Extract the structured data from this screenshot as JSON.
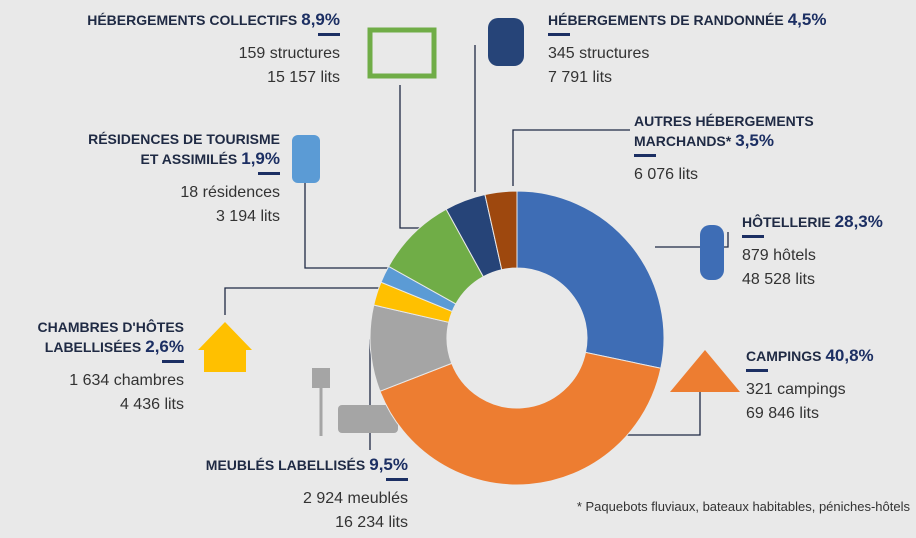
{
  "chart_data": {
    "type": "donut",
    "categories": [
      "HÔTELLERIE",
      "CAMPINGS",
      "MEUBLÉS LABELLISÉS",
      "CHAMBRES D'HÔTES LABELLISÉES",
      "RÉSIDENCES DE TOURISME ET ASSIMILÉS",
      "HÉBERGEMENTS COLLECTIFS",
      "HÉBERGEMENTS DE RANDONNÉE",
      "AUTRES HÉBERGEMENTS MARCHANDS*"
    ],
    "values": [
      28.3,
      40.8,
      9.5,
      2.6,
      1.9,
      8.9,
      4.5,
      3.5
    ],
    "value_labels": [
      "28,3%",
      "40,8%",
      "9,5%",
      "2,6%",
      "1,9%",
      "8,9%",
      "4,5%",
      "3,5%"
    ],
    "colors": [
      "#3e6db5",
      "#ed7d31",
      "#a5a5a5",
      "#ffc000",
      "#5b9bd5",
      "#70ad47",
      "#264478",
      "#9e480e"
    ],
    "details": [
      [
        "879 hôtels",
        "48 528 lits"
      ],
      [
        "321 campings",
        "69 846 lits"
      ],
      [
        "2 924 meublés",
        "16 234 lits"
      ],
      [
        "1 634 chambres",
        "4 436 lits"
      ],
      [
        "18 résidences",
        "3 194 lits"
      ],
      [
        "159 structures",
        "15 157 lits"
      ],
      [
        "345 structures",
        "7 791 lits"
      ],
      [
        "6 076 lits"
      ]
    ],
    "footnote": "* Paquebots fluviaux, bateaux habitables, péniches-hôtels"
  }
}
